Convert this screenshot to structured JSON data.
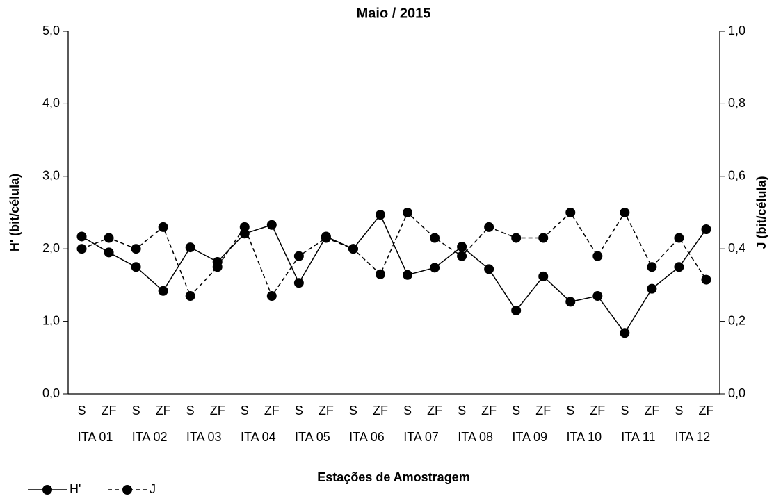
{
  "chart_data": {
    "type": "line",
    "title": "Maio / 2015",
    "xlabel": "Estações de Amostragem",
    "ylabel": "H' (bit/célula)",
    "y2label": "J (bit/célula)",
    "categories": [
      "S",
      "ZF",
      "S",
      "ZF",
      "S",
      "ZF",
      "S",
      "ZF",
      "S",
      "ZF",
      "S",
      "ZF",
      "S",
      "ZF",
      "S",
      "ZF",
      "S",
      "ZF",
      "S",
      "ZF",
      "S",
      "ZF",
      "S",
      "ZF"
    ],
    "groups": [
      "ITA 01",
      "ITA 02",
      "ITA 03",
      "ITA 04",
      "ITA 05",
      "ITA 06",
      "ITA 07",
      "ITA 08",
      "ITA 09",
      "ITA 10",
      "ITA 11",
      "ITA 12"
    ],
    "series": [
      {
        "name": "H'",
        "color": "#000000",
        "dash": false,
        "values": [
          2.17,
          1.95,
          1.75,
          1.42,
          2.02,
          1.82,
          2.21,
          2.33,
          1.53,
          2.17,
          2.0,
          2.47,
          1.64,
          1.74,
          2.03,
          1.72,
          1.15,
          1.62,
          1.27,
          1.35,
          0.84,
          1.45,
          1.75,
          2.27
        ]
      },
      {
        "name": "J",
        "color": "#000000",
        "dash": true,
        "axis": "y2",
        "values": [
          0.4,
          0.43,
          0.4,
          0.46,
          0.27,
          0.35,
          0.46,
          0.27,
          0.38,
          0.43,
          0.4,
          0.33,
          0.5,
          0.43,
          0.38,
          0.46,
          0.43,
          0.43,
          0.5,
          0.38,
          0.5,
          0.35,
          0.43,
          0.315
        ]
      }
    ],
    "ylim": [
      0,
      5
    ],
    "yticks": [
      {
        "value": 0,
        "label": "0,0"
      },
      {
        "value": 1,
        "label": "1,0"
      },
      {
        "value": 2,
        "label": "2,0"
      },
      {
        "value": 3,
        "label": "3,0"
      },
      {
        "value": 4,
        "label": "4,0"
      },
      {
        "value": 5,
        "label": "5,0"
      }
    ],
    "y2lim": [
      0,
      1
    ],
    "y2ticks": [
      {
        "value": 0,
        "label": "0,0"
      },
      {
        "value": 0.2,
        "label": "0,2"
      },
      {
        "value": 0.4,
        "label": "0,4"
      },
      {
        "value": 0.6,
        "label": "0,6"
      },
      {
        "value": 0.8,
        "label": "0,8"
      },
      {
        "value": 1,
        "label": "1,0"
      }
    ],
    "legend": "bottom-left"
  }
}
